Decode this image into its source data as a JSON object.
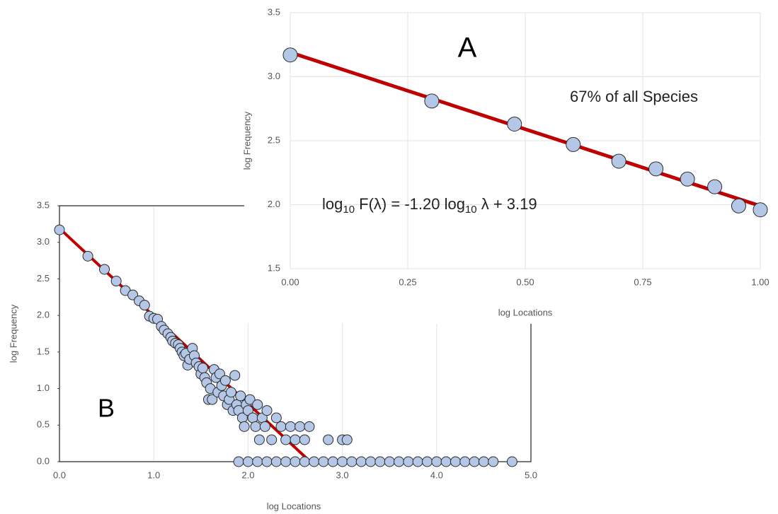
{
  "chart_data": [
    {
      "type": "scatter",
      "name": "B",
      "xlabel": "log Locations",
      "ylabel": "log Frequency",
      "xlim": [
        0,
        5
      ],
      "ylim": [
        0,
        3.5
      ],
      "xticks": [
        {
          "value": 0,
          "label": "0.0"
        },
        {
          "value": 1,
          "label": "1.0"
        },
        {
          "value": 2,
          "label": "2.0"
        },
        {
          "value": 3,
          "label": "3.0"
        },
        {
          "value": 4,
          "label": "4.0"
        },
        {
          "value": 5,
          "label": "5.0"
        }
      ],
      "yticks": [
        {
          "value": 0,
          "label": "0.0"
        },
        0.5,
        {
          "value": 1,
          "label": "1.0"
        },
        1.5,
        {
          "value": 2,
          "label": "2.0"
        },
        2.5,
        {
          "value": 3,
          "label": "3.0"
        },
        3.5
      ],
      "color": "#b4c7e7",
      "line_color": "#c00000",
      "grid": true,
      "x": [
        0,
        0.301,
        0.477,
        0.602,
        0.699,
        0.778,
        0.845,
        0.903,
        0.954,
        1.0,
        1.04,
        1.08,
        1.11,
        1.15,
        1.18,
        1.2,
        1.23,
        1.26,
        1.28,
        1.3,
        1.32,
        1.34,
        1.36,
        1.38,
        1.41,
        1.43,
        1.45,
        1.48,
        1.5,
        1.52,
        1.54,
        1.56,
        1.58,
        1.6,
        1.62,
        1.64,
        1.66,
        1.68,
        1.7,
        1.72,
        1.74,
        1.76,
        1.78,
        1.8,
        1.82,
        1.84,
        1.86,
        1.88,
        1.9,
        1.92,
        1.94,
        1.96,
        1.98,
        2.0,
        2.02,
        2.05,
        2.08,
        2.1,
        2.12,
        2.15,
        2.18,
        2.2,
        2.25,
        2.3,
        2.35,
        2.4,
        2.45,
        2.5,
        2.55,
        2.6,
        2.65,
        2.85,
        3.0,
        3.05,
        1.9,
        2.0,
        2.1,
        2.2,
        2.3,
        2.4,
        2.5,
        2.6,
        2.7,
        2.8,
        2.9,
        3.0,
        3.1,
        3.2,
        3.3,
        3.4,
        3.5,
        3.6,
        3.7,
        3.8,
        3.9,
        4.0,
        4.1,
        4.2,
        4.3,
        4.4,
        4.5,
        4.6,
        4.8
      ],
      "values": [
        3.17,
        2.81,
        2.63,
        2.47,
        2.34,
        2.28,
        2.2,
        2.14,
        1.99,
        1.96,
        1.95,
        1.85,
        1.8,
        1.75,
        1.7,
        1.65,
        1.62,
        1.6,
        1.55,
        1.5,
        1.45,
        1.48,
        1.32,
        1.4,
        1.55,
        1.45,
        1.35,
        1.3,
        1.2,
        1.28,
        1.15,
        1.08,
        0.85,
        1.0,
        0.85,
        1.26,
        1.15,
        0.95,
        1.2,
        1.04,
        0.9,
        1.11,
        0.78,
        0.85,
        0.95,
        0.7,
        1.18,
        0.78,
        0.7,
        0.9,
        0.6,
        0.48,
        0.78,
        0.7,
        0.85,
        0.6,
        0.48,
        0.78,
        0.3,
        0.6,
        0.48,
        0.7,
        0.3,
        0.6,
        0.48,
        0.3,
        0.48,
        0.3,
        0.48,
        0.3,
        0.48,
        0.3,
        0.3,
        0.3,
        0,
        0,
        0,
        0,
        0,
        0,
        0,
        0,
        0,
        0,
        0,
        0,
        0,
        0,
        0,
        0,
        0,
        0,
        0,
        0,
        0,
        0,
        0,
        0,
        0,
        0,
        0,
        0,
        0
      ],
      "fit_line": {
        "x": [
          0,
          2.66
        ],
        "values": [
          3.19,
          0
        ]
      }
    },
    {
      "type": "scatter",
      "name": "A",
      "xlabel": "log Locations",
      "ylabel": "log Frequency",
      "annotation": "67% of all Species",
      "equation": [
        "log",
        "10",
        " F(λ) = -1.20 log",
        "10",
        " λ + 3.19"
      ],
      "xlim": [
        0,
        1
      ],
      "ylim": [
        1.5,
        3.5
      ],
      "xticks": [
        {
          "value": 0,
          "label": "0.00"
        },
        {
          "value": 0.25,
          "label": "0.25"
        },
        {
          "value": 0.5,
          "label": "0.50"
        },
        {
          "value": 0.75,
          "label": "0.75"
        },
        {
          "value": 1,
          "label": "1.00"
        }
      ],
      "yticks": [
        1.5,
        {
          "value": 2,
          "label": "2.0"
        },
        2.5,
        {
          "value": 3,
          "label": "3.0"
        },
        3.5
      ],
      "color": "#b4c7e7",
      "line_color": "#c00000",
      "grid": true,
      "x": [
        0,
        0.301,
        0.477,
        0.602,
        0.699,
        0.778,
        0.845,
        0.903,
        0.954,
        1.0
      ],
      "values": [
        3.17,
        2.81,
        2.63,
        2.47,
        2.34,
        2.28,
        2.2,
        2.14,
        1.99,
        1.96
      ],
      "fit_line": {
        "x": [
          0,
          1
        ],
        "values": [
          3.19,
          1.99
        ]
      }
    }
  ]
}
